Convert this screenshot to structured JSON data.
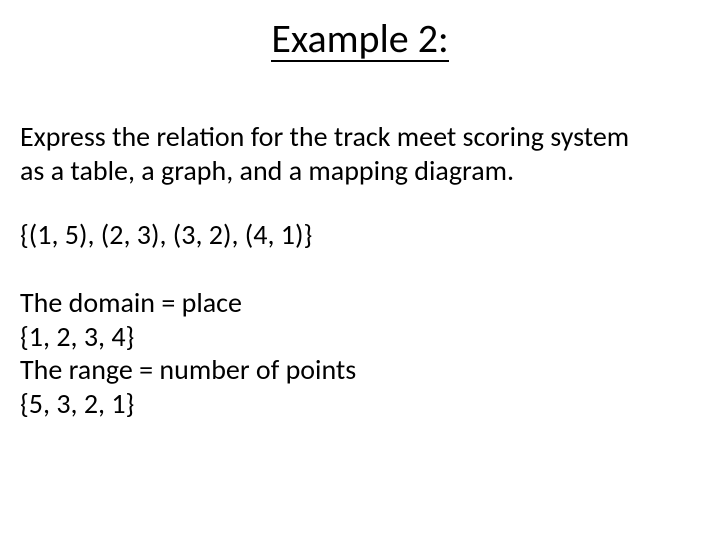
{
  "title": "Example 2:",
  "instruction_line1": "Express the relation for the track meet scoring system",
  "instruction_line2": "as a table, a graph, and a mapping diagram.",
  "relation_set": "{(1, 5), (2, 3), (3, 2), (4, 1)}",
  "domain_label": "The domain = place",
  "domain_set": "{1, 2, 3, 4}",
  "range_label": "The range = number of points",
  "range_set": "{5, 3, 2, 1}",
  "colors": {
    "text": "#000000",
    "background": "#ffffff",
    "underline": "#000000"
  },
  "typography": {
    "title_fontsize": 40,
    "body_fontsize": 28,
    "title_weight": "normal",
    "body_weight": "normal",
    "font_family": "Calibri"
  }
}
